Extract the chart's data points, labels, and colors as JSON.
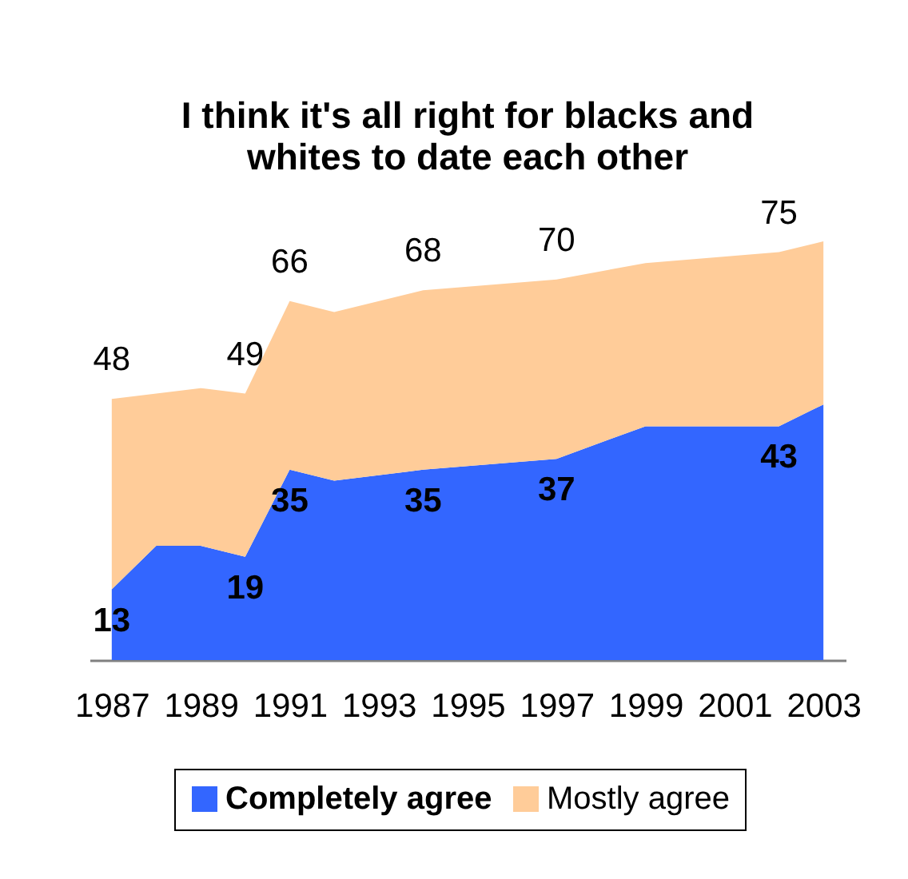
{
  "chart_data": {
    "type": "area",
    "title": "I think it's all right for blacks and whites to date each other",
    "x": [
      1987,
      1988,
      1989,
      1990,
      1991,
      1992,
      1994,
      1997,
      1999,
      2002,
      2003
    ],
    "series": [
      {
        "name": "Completely agree",
        "color": "#3366ff",
        "values": [
          13,
          21,
          21,
          19,
          35,
          33,
          35,
          37,
          43,
          43,
          47
        ],
        "value_labels": [
          "13",
          null,
          null,
          "19",
          "35",
          null,
          "35",
          "37",
          null,
          "43",
          null
        ]
      },
      {
        "name": "Mostly agree",
        "color": "#ffcc99",
        "values": [
          35,
          28,
          29,
          30,
          31,
          31,
          33,
          33,
          30,
          32,
          30
        ]
      }
    ],
    "stacked": true,
    "totals": [
      "48",
      null,
      null,
      "49",
      "66",
      null,
      "68",
      "70",
      null,
      "75",
      null
    ],
    "xlim": [
      1986.5,
      2003.5
    ],
    "xticks": [
      1987,
      1989,
      1991,
      1993,
      1995,
      1997,
      1999,
      2001,
      2003
    ],
    "legend": "bottom",
    "tick_labels": "x"
  }
}
